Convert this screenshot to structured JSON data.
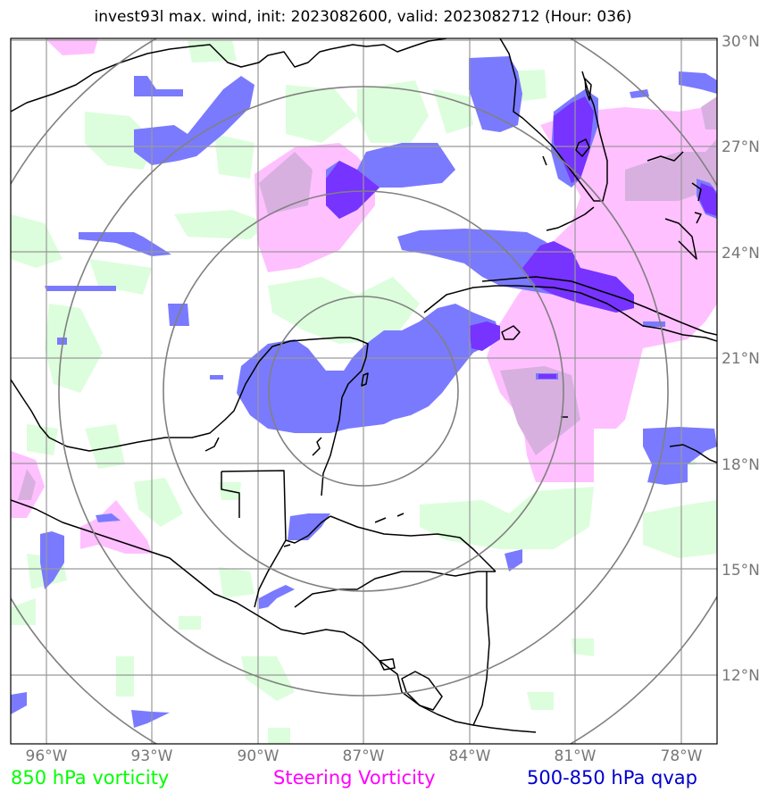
{
  "title": "invest93l max. wind, init: 2023082600, valid: 2023082712 (Hour: 036)",
  "legend": {
    "vorticity_850": "850 hPa vorticity",
    "steering_vorticity": "Steering Vorticity",
    "qvap": "500-850 hPa qvap"
  },
  "colors": {
    "vorticity_850": "#00ff00",
    "steering_vorticity": "#ff00ff",
    "qvap": "#0000cc",
    "green_fill": "#dcfedc",
    "pink_fill": "#ffc0ff",
    "blue_fill": "#7a7aff",
    "purple_fill": "#7733ff",
    "grid": "#999999",
    "range_rings": "#808080"
  },
  "map": {
    "lon_range": [
      -97,
      -77
    ],
    "lat_range": [
      10,
      30
    ],
    "lon_ticks": [
      "96°W",
      "93°W",
      "90°W",
      "87°W",
      "84°W",
      "81°W",
      "78°W"
    ],
    "lat_ticks": [
      "30°N",
      "27°N",
      "24°N",
      "21°N",
      "18°N",
      "15°N",
      "12°N"
    ],
    "center": {
      "lon": -87,
      "lat": 20.3
    },
    "range_rings": 4
  }
}
